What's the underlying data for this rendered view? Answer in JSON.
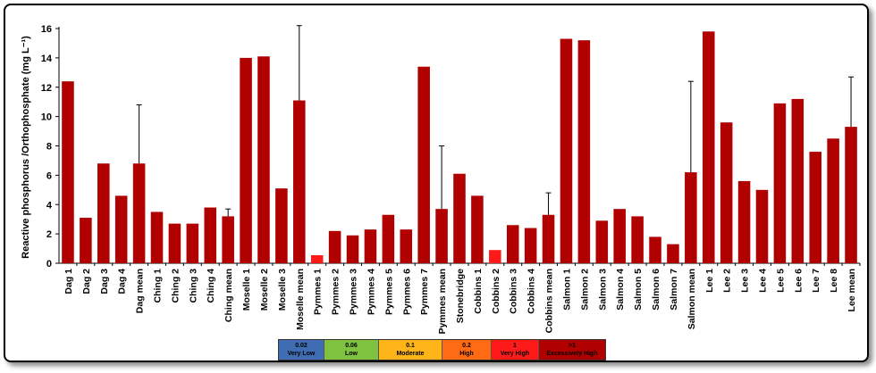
{
  "chart_data": {
    "type": "bar",
    "ylabel": "Reactive phosphorus /Orthophosphate  (mg L⁻¹)",
    "ylim": [
      0,
      16
    ],
    "yticks": [
      0,
      2,
      4,
      6,
      8,
      10,
      12,
      14,
      16
    ],
    "grid": false,
    "categories": [
      "Dag 1",
      "Dag 2",
      "Dag 3",
      "Dag 4",
      "Dag mean",
      "Ching 1",
      "Ching 2",
      "Ching 3",
      "Ching 4",
      "Ching mean",
      "Moselle 1",
      "Moselle 2",
      "Moselle 3",
      "Moselle mean",
      "Pymmes 1",
      "Pymmes 2",
      "Pymmes 3",
      "Pymmes 4",
      "Pymmes 5",
      "Pymmes 6",
      "Pymmes 7",
      "Pymmes mean",
      "Stonebridge",
      "Cobbins 1",
      "Cobbins 2",
      "Cobbins 3",
      "Cobbins 4",
      "Cobbins mean",
      "Salmon 1",
      "Salmon 2",
      "Salmon 3",
      "Salmon 4",
      "Salmon 5",
      "Salmon 6",
      "Salmon 7",
      "Salmon mean",
      "Lee 1",
      "Lee 2",
      "Lee 3",
      "Lee 4",
      "Lee 5",
      "Lee 6",
      "Lee 7",
      "Lee 8",
      "Lee mean"
    ],
    "values": [
      12.4,
      3.1,
      6.8,
      4.6,
      6.8,
      3.5,
      2.7,
      2.7,
      3.8,
      3.2,
      14.0,
      14.1,
      5.1,
      11.1,
      0.55,
      2.2,
      1.9,
      2.3,
      3.3,
      2.3,
      13.4,
      3.7,
      6.1,
      4.6,
      0.9,
      2.6,
      2.4,
      3.3,
      15.3,
      15.2,
      2.9,
      3.7,
      3.2,
      1.8,
      1.3,
      6.2,
      15.8,
      9.6,
      5.6,
      5.0,
      10.9,
      11.2,
      7.6,
      8.5,
      9.3
    ],
    "colors": [
      "#b00000",
      "#b00000",
      "#b00000",
      "#b00000",
      "#b00000",
      "#b00000",
      "#b00000",
      "#b00000",
      "#b00000",
      "#b00000",
      "#b00000",
      "#b00000",
      "#b00000",
      "#b00000",
      "#ff1a1a",
      "#b00000",
      "#b00000",
      "#b00000",
      "#b00000",
      "#b00000",
      "#b00000",
      "#b00000",
      "#b00000",
      "#b00000",
      "#ff1a1a",
      "#b00000",
      "#b00000",
      "#b00000",
      "#b00000",
      "#b00000",
      "#b00000",
      "#b00000",
      "#b00000",
      "#b00000",
      "#b00000",
      "#b00000",
      "#b00000",
      "#b00000",
      "#b00000",
      "#b00000",
      "#b00000",
      "#b00000",
      "#b00000",
      "#b00000",
      "#b00000"
    ],
    "error_bars": [
      {
        "category": "Dag mean",
        "upper": 10.8
      },
      {
        "category": "Ching mean",
        "upper": 3.7
      },
      {
        "category": "Moselle mean",
        "upper": 16.2
      },
      {
        "category": "Pymmes mean",
        "upper": 8.0
      },
      {
        "category": "Cobbins mean",
        "upper": 4.8
      },
      {
        "category": "Salmon mean",
        "upper": 12.4
      },
      {
        "category": "Lee mean",
        "upper": 12.7
      }
    ]
  },
  "legend": [
    {
      "value": "0.02",
      "label": "Very Low",
      "color": "#3f6cb3"
    },
    {
      "value": "0.06",
      "label": "Low",
      "color": "#7fc241"
    },
    {
      "value": "0.1",
      "label": "Moderate",
      "color": "#ffb51a"
    },
    {
      "value": "0.2",
      "label": "High",
      "color": "#ff6a13"
    },
    {
      "value": "1",
      "label": "Very High",
      "color": "#ff1a1a"
    },
    {
      "value": ">1",
      "label": "Excessively High",
      "color": "#b00000"
    }
  ]
}
